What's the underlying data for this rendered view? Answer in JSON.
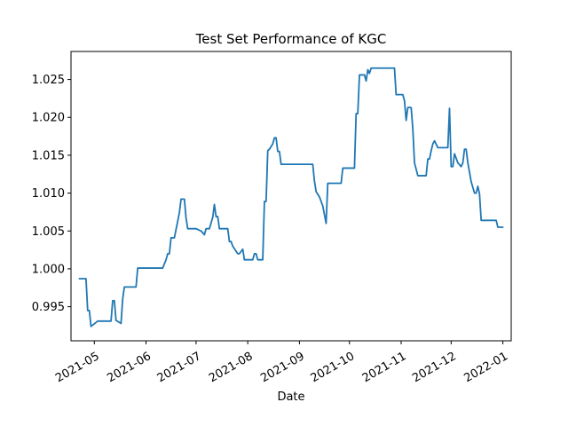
{
  "chart_data": {
    "type": "line",
    "title": "Test Set Performance of KGC",
    "xlabel": "Date",
    "ylabel": "",
    "x_axis_type": "date",
    "xlim": [
      "2021-04-17",
      "2022-01-06"
    ],
    "ylim": [
      0.9905,
      1.0287
    ],
    "grid": false,
    "color": "#1f77b4",
    "x_ticks": [
      "2021-05",
      "2021-06",
      "2021-07",
      "2021-08",
      "2021-09",
      "2021-10",
      "2021-11",
      "2021-12",
      "2022-01"
    ],
    "y_ticks": [
      "0.995",
      "1.000",
      "1.005",
      "1.010",
      "1.015",
      "1.020",
      "1.025"
    ],
    "series": [
      {
        "points": [
          [
            "2021-04-22",
            0.9987
          ],
          [
            "2021-04-26",
            0.9987
          ],
          [
            "2021-04-27",
            0.9945
          ],
          [
            "2021-04-28",
            0.9945
          ],
          [
            "2021-04-29",
            0.9924
          ],
          [
            "2021-05-03",
            0.9931
          ],
          [
            "2021-05-11",
            0.9931
          ],
          [
            "2021-05-12",
            0.9958
          ],
          [
            "2021-05-13",
            0.9958
          ],
          [
            "2021-05-14",
            0.9932
          ],
          [
            "2021-05-17",
            0.9928
          ],
          [
            "2021-05-18",
            0.996
          ],
          [
            "2021-05-19",
            0.9976
          ],
          [
            "2021-05-26",
            0.9976
          ],
          [
            "2021-05-27",
            1.0001
          ],
          [
            "2021-06-11",
            1.0001
          ],
          [
            "2021-06-13",
            1.0012
          ],
          [
            "2021-06-14",
            1.002
          ],
          [
            "2021-06-15",
            1.002
          ],
          [
            "2021-06-16",
            1.0041
          ],
          [
            "2021-06-18",
            1.0041
          ],
          [
            "2021-06-21",
            1.0074
          ],
          [
            "2021-06-22",
            1.0092
          ],
          [
            "2021-06-24",
            1.0092
          ],
          [
            "2021-06-25",
            1.0067
          ],
          [
            "2021-06-26",
            1.0053
          ],
          [
            "2021-07-01",
            1.0053
          ],
          [
            "2021-07-04",
            1.005
          ],
          [
            "2021-07-06",
            1.0045
          ],
          [
            "2021-07-07",
            1.0053
          ],
          [
            "2021-07-09",
            1.0053
          ],
          [
            "2021-07-11",
            1.0068
          ],
          [
            "2021-07-12",
            1.0085
          ],
          [
            "2021-07-13",
            1.0069
          ],
          [
            "2021-07-14",
            1.0069
          ],
          [
            "2021-07-15",
            1.0053
          ],
          [
            "2021-07-20",
            1.0053
          ],
          [
            "2021-07-21",
            1.0036
          ],
          [
            "2021-07-22",
            1.0036
          ],
          [
            "2021-07-23",
            1.003
          ],
          [
            "2021-07-26",
            1.002
          ],
          [
            "2021-07-27",
            1.002
          ],
          [
            "2021-07-29",
            1.0026
          ],
          [
            "2021-07-30",
            1.0012
          ],
          [
            "2021-08-04",
            1.0012
          ],
          [
            "2021-08-05",
            1.002
          ],
          [
            "2021-08-06",
            1.002
          ],
          [
            "2021-08-07",
            1.0012
          ],
          [
            "2021-08-10",
            1.0012
          ],
          [
            "2021-08-11",
            1.0089
          ],
          [
            "2021-08-12",
            1.0089
          ],
          [
            "2021-08-13",
            1.0156
          ],
          [
            "2021-08-14",
            1.0158
          ],
          [
            "2021-08-16",
            1.0165
          ],
          [
            "2021-08-17",
            1.0173
          ],
          [
            "2021-08-18",
            1.0173
          ],
          [
            "2021-08-19",
            1.0155
          ],
          [
            "2021-08-20",
            1.0155
          ],
          [
            "2021-08-21",
            1.0138
          ],
          [
            "2021-09-09",
            1.0138
          ],
          [
            "2021-09-10",
            1.0116
          ],
          [
            "2021-09-11",
            1.0102
          ],
          [
            "2021-09-13",
            1.0095
          ],
          [
            "2021-09-15",
            1.0083
          ],
          [
            "2021-09-17",
            1.006
          ],
          [
            "2021-09-18",
            1.0113
          ],
          [
            "2021-09-26",
            1.0113
          ],
          [
            "2021-09-27",
            1.0133
          ],
          [
            "2021-10-04",
            1.0133
          ],
          [
            "2021-10-05",
            1.0205
          ],
          [
            "2021-10-06",
            1.0205
          ],
          [
            "2021-10-07",
            1.0256
          ],
          [
            "2021-10-10",
            1.0256
          ],
          [
            "2021-10-11",
            1.0248
          ],
          [
            "2021-10-12",
            1.0263
          ],
          [
            "2021-10-13",
            1.0258
          ],
          [
            "2021-10-14",
            1.0265
          ],
          [
            "2021-10-28",
            1.0265
          ],
          [
            "2021-10-29",
            1.023
          ],
          [
            "2021-11-02",
            1.023
          ],
          [
            "2021-11-03",
            1.0222
          ],
          [
            "2021-11-04",
            1.0196
          ],
          [
            "2021-11-05",
            1.0213
          ],
          [
            "2021-11-07",
            1.0213
          ],
          [
            "2021-11-08",
            1.0185
          ],
          [
            "2021-11-09",
            1.014
          ],
          [
            "2021-11-11",
            1.0123
          ],
          [
            "2021-11-16",
            1.0123
          ],
          [
            "2021-11-17",
            1.0145
          ],
          [
            "2021-11-18",
            1.0145
          ],
          [
            "2021-11-19",
            1.0156
          ],
          [
            "2021-11-20",
            1.0165
          ],
          [
            "2021-11-21",
            1.0169
          ],
          [
            "2021-11-23",
            1.016
          ],
          [
            "2021-11-29",
            1.016
          ],
          [
            "2021-11-30",
            1.0212
          ],
          [
            "2021-12-01",
            1.0135
          ],
          [
            "2021-12-02",
            1.0135
          ],
          [
            "2021-12-03",
            1.0152
          ],
          [
            "2021-12-05",
            1.014
          ],
          [
            "2021-12-07",
            1.0135
          ],
          [
            "2021-12-08",
            1.014
          ],
          [
            "2021-12-09",
            1.0158
          ],
          [
            "2021-12-10",
            1.0158
          ],
          [
            "2021-12-11",
            1.014
          ],
          [
            "2021-12-13",
            1.0115
          ],
          [
            "2021-12-15",
            1.01
          ],
          [
            "2021-12-16",
            1.01
          ],
          [
            "2021-12-17",
            1.0109
          ],
          [
            "2021-12-18",
            1.0099
          ],
          [
            "2021-12-19",
            1.0064
          ],
          [
            "2021-12-28",
            1.0064
          ],
          [
            "2021-12-29",
            1.0055
          ],
          [
            "2022-01-01",
            1.0055
          ]
        ]
      }
    ]
  }
}
